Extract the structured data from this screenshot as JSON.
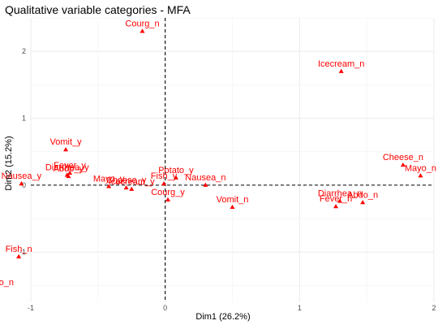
{
  "chart_data": {
    "type": "scatter",
    "title": "Qualitative variable categories - MFA",
    "xlabel": "Dim1 (26.2%)",
    "ylabel": "Dim2 (15.2%)",
    "xlim": [
      -1.0,
      2.0
    ],
    "ylim": [
      -1.75,
      2.5
    ],
    "xticks": [
      -1,
      0,
      1,
      2
    ],
    "yticks": [
      -1,
      0,
      1,
      2
    ],
    "grid": true,
    "ref_lines": {
      "x": 0,
      "y": 0
    },
    "point_color": "#ff0000",
    "marker": "triangle",
    "points": [
      {
        "label": "Courg_n",
        "x": -0.17,
        "y": 2.3
      },
      {
        "label": "Icecream_n",
        "x": 1.31,
        "y": 1.7
      },
      {
        "label": "Vomit_y",
        "x": -0.74,
        "y": 0.53
      },
      {
        "label": "Fever_y",
        "x": -0.71,
        "y": 0.18
      },
      {
        "label": "Diarrhea_y",
        "x": -0.73,
        "y": 0.15
      },
      {
        "label": "Abdo_y",
        "x": -0.72,
        "y": 0.13
      },
      {
        "label": "Nausea_y",
        "x": -1.07,
        "y": 0.02
      },
      {
        "label": "Mayo_y",
        "x": -0.42,
        "y": -0.02
      },
      {
        "label": "Cheese_y",
        "x": -0.29,
        "y": -0.04
      },
      {
        "label": "Icecream_y",
        "x": -0.25,
        "y": -0.06
      },
      {
        "label": "Potato_y",
        "x": 0.08,
        "y": 0.11
      },
      {
        "label": "Fish_y",
        "x": -0.01,
        "y": 0.02
      },
      {
        "label": "Nausea_n",
        "x": 0.3,
        "y": 0.0
      },
      {
        "label": "Courg_y",
        "x": 0.02,
        "y": -0.22
      },
      {
        "label": "Vomit_n",
        "x": 0.5,
        "y": -0.33
      },
      {
        "label": "Cheese_n",
        "x": 1.77,
        "y": 0.3
      },
      {
        "label": "Mayo_n",
        "x": 1.9,
        "y": 0.14
      },
      {
        "label": "Diarrhea_n",
        "x": 1.3,
        "y": -0.24
      },
      {
        "label": "Abdo_n",
        "x": 1.47,
        "y": -0.26
      },
      {
        "label": "Fever_n",
        "x": 1.27,
        "y": -0.32
      },
      {
        "label": "Fish_n",
        "x": -1.09,
        "y": -1.07
      },
      {
        "label": "Potato_n",
        "x": -1.26,
        "y": -1.57
      }
    ]
  }
}
